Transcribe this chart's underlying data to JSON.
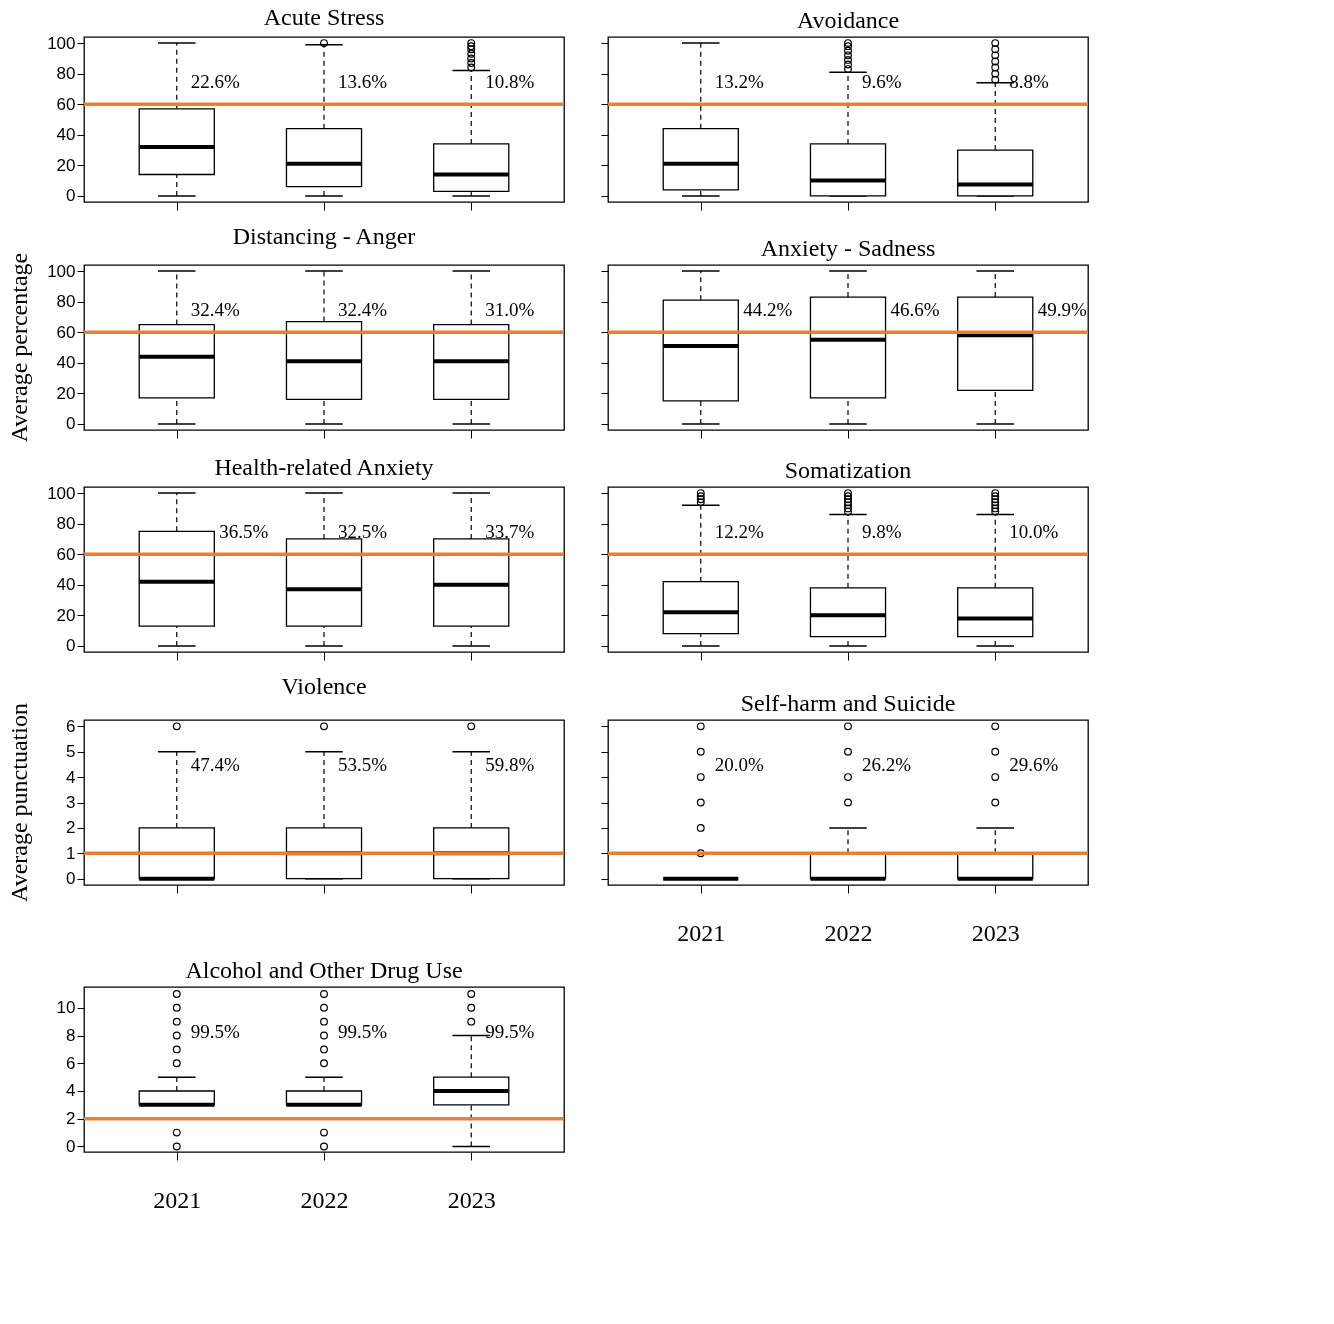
{
  "chart_data": [
    {
      "type": "box",
      "title": "Acute Stress",
      "categories": [
        "2021",
        "2022",
        "2023"
      ],
      "ylim": [
        -4,
        104
      ],
      "yticks": [
        0,
        20,
        40,
        60,
        80,
        100
      ],
      "tick_labels": "y",
      "boxes": [
        {
          "low": 0,
          "q1": 14,
          "median": 32,
          "q3": 57,
          "high": 100
        },
        {
          "low": 0,
          "q1": 6,
          "median": 21,
          "q3": 44,
          "high": 99,
          "outliers": [
            100
          ]
        },
        {
          "low": 0,
          "q1": 3,
          "median": 14,
          "q3": 34,
          "high": 82,
          "outliers": [
            84,
            87,
            90,
            93,
            96,
            98,
            100
          ]
        }
      ],
      "ref_lines": [
        {
          "axis": "y",
          "value": 60,
          "color": "#ed7d31"
        }
      ],
      "annotations": [
        "22.6%",
        "13.6%",
        "10.8%"
      ]
    },
    {
      "type": "box",
      "title": "Avoidance",
      "categories": [
        "2021",
        "2022",
        "2023"
      ],
      "ylim": [
        -4,
        104
      ],
      "yticks": [
        0,
        20,
        40,
        60,
        80,
        100
      ],
      "tick_labels": false,
      "boxes": [
        {
          "low": 0,
          "q1": 4,
          "median": 21,
          "q3": 44,
          "high": 100
        },
        {
          "low": 0,
          "q1": 0,
          "median": 10,
          "q3": 34,
          "high": 81,
          "outliers": [
            83,
            86,
            89,
            92,
            95,
            98,
            100
          ]
        },
        {
          "low": 0,
          "q1": 0,
          "median": 7.5,
          "q3": 30,
          "high": 74,
          "outliers": [
            76,
            80,
            84,
            88,
            92,
            96,
            100
          ]
        }
      ],
      "ref_lines": [
        {
          "axis": "y",
          "value": 60,
          "color": "#ed7d31"
        }
      ],
      "annotations": [
        "13.2%",
        "9.6%",
        "8.8%"
      ]
    },
    {
      "type": "box",
      "title": "Distancing - Anger",
      "ylabel": "Average percentage",
      "categories": [
        "2021",
        "2022",
        "2023"
      ],
      "ylim": [
        -4,
        104
      ],
      "yticks": [
        0,
        20,
        40,
        60,
        80,
        100
      ],
      "tick_labels": "y",
      "boxes": [
        {
          "low": 0,
          "q1": 17,
          "median": 44,
          "q3": 65,
          "high": 100
        },
        {
          "low": 0,
          "q1": 16,
          "median": 41,
          "q3": 67,
          "high": 100
        },
        {
          "low": 0,
          "q1": 16,
          "median": 41,
          "q3": 65,
          "high": 100
        }
      ],
      "ref_lines": [
        {
          "axis": "y",
          "value": 60,
          "color": "#ed7d31"
        }
      ],
      "annotations": [
        "32.4%",
        "32.4%",
        "31.0%"
      ]
    },
    {
      "type": "box",
      "title": "Anxiety - Sadness",
      "categories": [
        "2021",
        "2022",
        "2023"
      ],
      "ylim": [
        -4,
        104
      ],
      "yticks": [
        0,
        20,
        40,
        60,
        80,
        100
      ],
      "tick_labels": false,
      "boxes": [
        {
          "low": 0,
          "q1": 15,
          "median": 51,
          "q3": 81,
          "high": 100
        },
        {
          "low": 0,
          "q1": 17,
          "median": 55,
          "q3": 83,
          "high": 100
        },
        {
          "low": 0,
          "q1": 22,
          "median": 58,
          "q3": 83,
          "high": 100
        }
      ],
      "ref_lines": [
        {
          "axis": "y",
          "value": 60,
          "color": "#ed7d31"
        }
      ],
      "annotations": [
        "44.2%",
        "46.6%",
        "49.9%"
      ]
    },
    {
      "type": "box",
      "title": "Health-related Anxiety",
      "categories": [
        "2021",
        "2022",
        "2023"
      ],
      "ylim": [
        -4,
        104
      ],
      "yticks": [
        0,
        20,
        40,
        60,
        80,
        100
      ],
      "tick_labels": "y",
      "boxes": [
        {
          "low": 0,
          "q1": 13,
          "median": 42,
          "q3": 75,
          "high": 100
        },
        {
          "low": 0,
          "q1": 13,
          "median": 37,
          "q3": 70,
          "high": 100
        },
        {
          "low": 0,
          "q1": 13,
          "median": 40,
          "q3": 70,
          "high": 100
        }
      ],
      "ref_lines": [
        {
          "axis": "y",
          "value": 60,
          "color": "#ed7d31"
        }
      ],
      "annotations": [
        "36.5%",
        "32.5%",
        "33.7%"
      ]
    },
    {
      "type": "box",
      "title": "Somatization",
      "categories": [
        "2021",
        "2022",
        "2023"
      ],
      "ylim": [
        -4,
        104
      ],
      "yticks": [
        0,
        20,
        40,
        60,
        80,
        100
      ],
      "tick_labels": false,
      "boxes": [
        {
          "low": 0,
          "q1": 8,
          "median": 22,
          "q3": 42,
          "high": 92,
          "outliers": [
            94,
            96,
            98,
            100
          ]
        },
        {
          "low": 0,
          "q1": 6,
          "median": 20,
          "q3": 38,
          "high": 86,
          "outliers": [
            88,
            90,
            92,
            94,
            96,
            98,
            100
          ]
        },
        {
          "low": 0,
          "q1": 6,
          "median": 18,
          "q3": 38,
          "high": 86,
          "outliers": [
            88,
            90,
            92,
            94,
            96,
            98,
            100
          ]
        }
      ],
      "ref_lines": [
        {
          "axis": "y",
          "value": 60,
          "color": "#ed7d31"
        }
      ],
      "annotations": [
        "12.2%",
        "9.8%",
        "10.0%"
      ]
    },
    {
      "type": "box",
      "title": "Violence",
      "ylabel": "Average punctuation",
      "categories": [
        "2021",
        "2022",
        "2023"
      ],
      "ylim": [
        -0.25,
        6.25
      ],
      "yticks": [
        0,
        1,
        2,
        3,
        4,
        5,
        6
      ],
      "tick_labels": "y",
      "boxes": [
        {
          "low": 0,
          "q1": 0,
          "median": 0,
          "q3": 2,
          "high": 5,
          "outliers": [
            6
          ]
        },
        {
          "low": 0,
          "q1": 0,
          "median": 1,
          "q3": 2,
          "high": 5,
          "outliers": [
            6
          ]
        },
        {
          "low": 0,
          "q1": 0,
          "median": 1,
          "q3": 2,
          "high": 5,
          "outliers": [
            6
          ]
        }
      ],
      "ref_lines": [
        {
          "axis": "y",
          "value": 1,
          "color": "#ed7d31"
        }
      ],
      "annotations": [
        "47.4%",
        "53.5%",
        "59.8%"
      ]
    },
    {
      "type": "box",
      "title": "Self-harm and Suicide",
      "categories": [
        "2021",
        "2022",
        "2023"
      ],
      "ylim": [
        -0.25,
        6.25
      ],
      "yticks": [
        0,
        1,
        2,
        3,
        4,
        5,
        6
      ],
      "tick_labels": "x",
      "boxes": [
        {
          "low": 0,
          "q1": 0,
          "median": 0,
          "q3": 0,
          "high": 0,
          "outliers": [
            1,
            2,
            3,
            4,
            5,
            6
          ]
        },
        {
          "low": 0,
          "q1": 0,
          "median": 0,
          "q3": 1,
          "high": 2,
          "outliers": [
            3,
            4,
            5,
            6
          ]
        },
        {
          "low": 0,
          "q1": 0,
          "median": 0,
          "q3": 1,
          "high": 2,
          "outliers": [
            3,
            4,
            5,
            6
          ]
        }
      ],
      "ref_lines": [
        {
          "axis": "y",
          "value": 1,
          "color": "#ed7d31"
        }
      ],
      "annotations": [
        "20.0%",
        "26.2%",
        "29.6%"
      ]
    },
    {
      "type": "box",
      "title": "Alcohol and Other Drug Use",
      "categories": [
        "2021",
        "2022",
        "2023"
      ],
      "ylim": [
        -0.4,
        11.5
      ],
      "yticks": [
        0,
        2,
        4,
        6,
        8,
        10
      ],
      "boxes": [
        {
          "low": 3,
          "q1": 3,
          "median": 3,
          "q3": 4,
          "high": 5,
          "outliers": [
            0,
            1,
            6,
            7,
            8,
            9,
            10,
            11
          ]
        },
        {
          "low": 3,
          "q1": 3,
          "median": 3,
          "q3": 4,
          "high": 5,
          "outliers": [
            0,
            1,
            6,
            7,
            8,
            9,
            10,
            11
          ]
        },
        {
          "low": 0,
          "q1": 3,
          "median": 4,
          "q3": 5,
          "high": 8,
          "outliers": [
            9,
            10,
            11
          ]
        }
      ],
      "ref_lines": [
        {
          "axis": "y",
          "value": 2,
          "color": "#ed7d31"
        }
      ],
      "annotations": [
        "99.5%",
        "99.5%",
        "99.5%"
      ]
    }
  ]
}
